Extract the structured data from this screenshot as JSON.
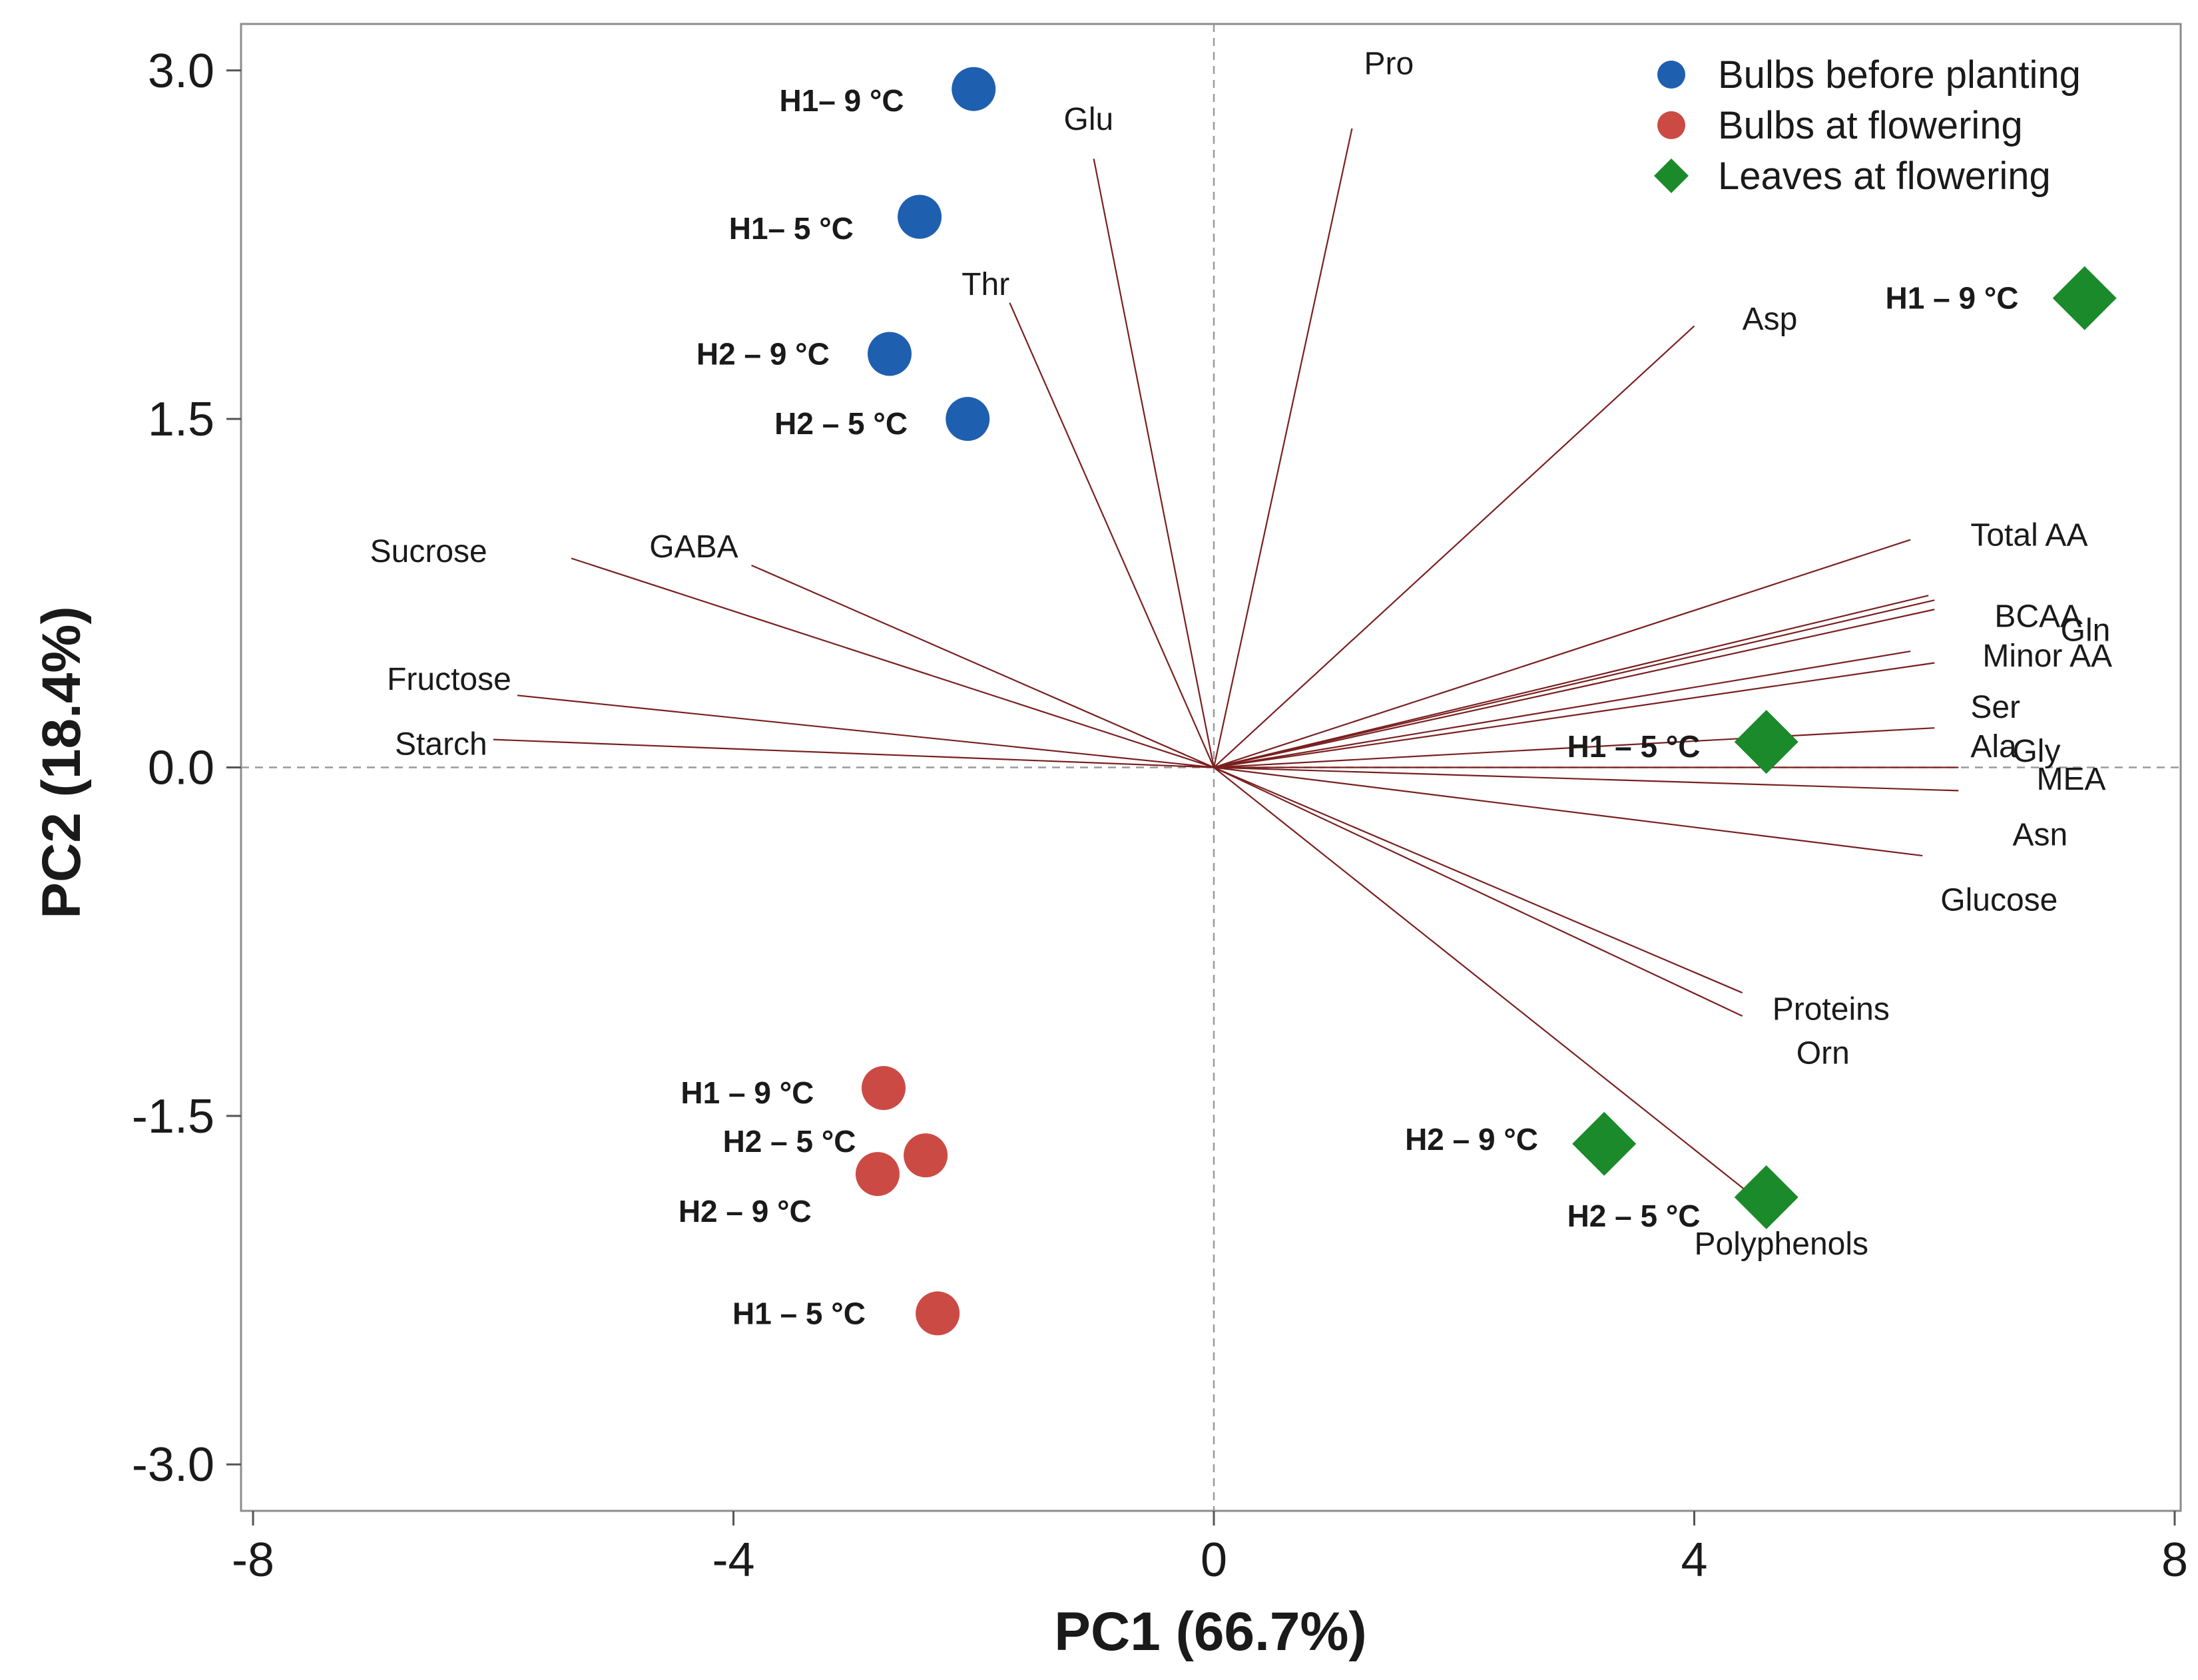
{
  "chart_data": {
    "type": "scatter",
    "subtype": "pca-biplot",
    "xlabel": "PC1 (66.7%)",
    "ylabel": "PC2 (18.4%)",
    "xlim": [
      -8.1,
      8.05
    ],
    "ylim": [
      -3.2,
      3.2
    ],
    "xticks": [
      -8,
      -4,
      0,
      4,
      8
    ],
    "xtick_labels": [
      "-8",
      "-4",
      "0",
      "4",
      "8"
    ],
    "yticks": [
      3.0,
      1.5,
      0.0,
      -1.5,
      -3.0
    ],
    "ytick_labels": [
      "3.0",
      "1.5",
      "0.0",
      "-1.5",
      "-3.0"
    ],
    "reference_lines": {
      "x": 0,
      "y": 0
    },
    "legend": {
      "position": "top-right",
      "entries": [
        {
          "label": "Bulbs before planting",
          "color": "#1f5fb0",
          "marker": "circle"
        },
        {
          "label": "Bulbs at flowering",
          "color": "#cc4a44",
          "marker": "circle"
        },
        {
          "label": "Leaves at flowering",
          "color": "#1b8a2a",
          "marker": "diamond"
        }
      ]
    },
    "loading_color": "#7a1f1f",
    "loadings": [
      {
        "name": "Pro",
        "x": 1.15,
        "y": 2.75
      },
      {
        "name": "Glu",
        "x": -1.0,
        "y": 2.62
      },
      {
        "name": "Thr",
        "x": -1.7,
        "y": 2.0
      },
      {
        "name": "Asp",
        "x": 4.0,
        "y": 1.9
      },
      {
        "name": "Sucrose",
        "x": -5.35,
        "y": 0.9
      },
      {
        "name": "GABA",
        "x": -3.85,
        "y": 0.87
      },
      {
        "name": "Fructose",
        "x": -5.8,
        "y": 0.31
      },
      {
        "name": "Starch",
        "x": -6.0,
        "y": 0.12
      },
      {
        "name": "Total AA",
        "x": 5.8,
        "y": 0.98
      },
      {
        "name": "BCAA",
        "x": 5.95,
        "y": 0.74
      },
      {
        "name": "Gln",
        "x": 6.0,
        "y": 0.72
      },
      {
        "name": "Minor AA",
        "x": 6.0,
        "y": 0.68
      },
      {
        "name": "Ser",
        "x": 5.8,
        "y": 0.5
      },
      {
        "name": "Ala",
        "x": 6.0,
        "y": 0.45
      },
      {
        "name": "Gly",
        "x": 6.0,
        "y": 0.17
      },
      {
        "name": "MEA",
        "x": 6.2,
        "y": 0.0
      },
      {
        "name": "Asn",
        "x": 6.2,
        "y": -0.1
      },
      {
        "name": "Glucose",
        "x": 5.9,
        "y": -0.38
      },
      {
        "name": "Proteins",
        "x": 4.4,
        "y": -0.97
      },
      {
        "name": "Orn",
        "x": 4.4,
        "y": -1.07
      },
      {
        "name": "Polyphenols",
        "x": 4.5,
        "y": -1.85
      }
    ],
    "series": [
      {
        "name": "Bulbs before planting",
        "color": "#1f5fb0",
        "marker": "circle",
        "points": [
          {
            "label": "H1– 9 °C",
            "x": -2.0,
            "y": 2.92
          },
          {
            "label": "H1– 5 °C",
            "x": -2.45,
            "y": 2.37
          },
          {
            "label": "H2 – 9 °C",
            "x": -2.7,
            "y": 1.78
          },
          {
            "label": "H2 – 5 °C",
            "x": -2.05,
            "y": 1.5
          }
        ]
      },
      {
        "name": "Bulbs at flowering",
        "color": "#cc4a44",
        "marker": "circle",
        "points": [
          {
            "label": "H1 – 9 °C",
            "x": -2.75,
            "y": -1.38
          },
          {
            "label": "H2 – 5 °C",
            "x": -2.4,
            "y": -1.67
          },
          {
            "label": "H2 – 9 °C",
            "x": -2.8,
            "y": -1.75
          },
          {
            "label": "H1 – 5 °C",
            "x": -2.3,
            "y": -2.35
          }
        ]
      },
      {
        "name": "Leaves at flowering",
        "color": "#1b8a2a",
        "marker": "diamond",
        "points": [
          {
            "label": "H1 – 9 °C",
            "x": 7.25,
            "y": 2.02
          },
          {
            "label": "H1 – 5 °C",
            "x": 4.6,
            "y": 0.11
          },
          {
            "label": "H2 – 9 °C",
            "x": 3.25,
            "y": -1.62
          },
          {
            "label": "H2 – 5 °C",
            "x": 4.6,
            "y": -1.85
          }
        ]
      }
    ]
  }
}
